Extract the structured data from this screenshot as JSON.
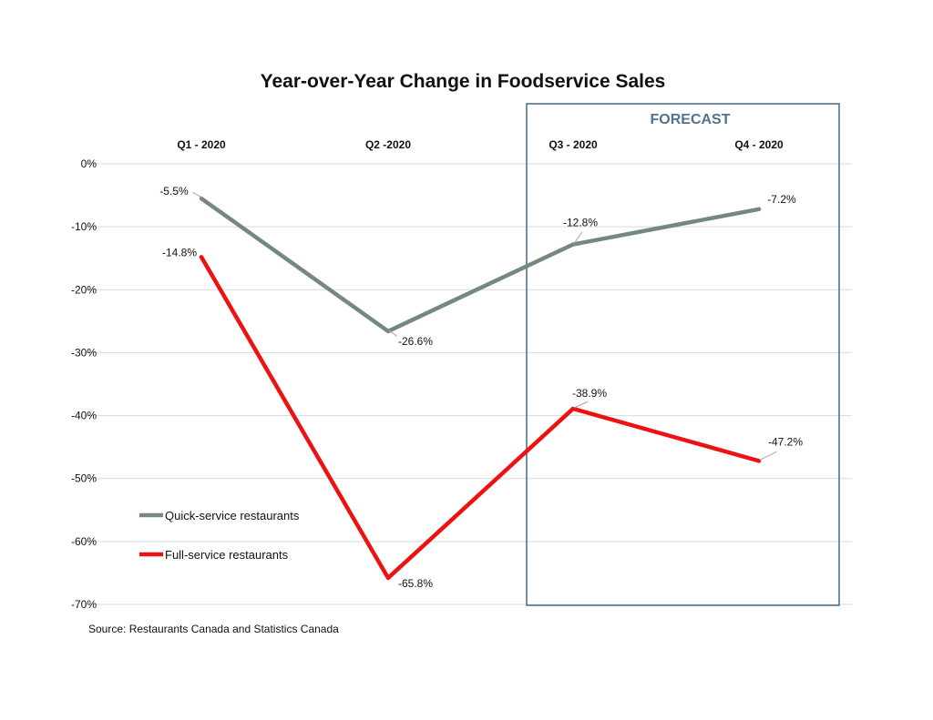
{
  "chart_data": {
    "type": "line",
    "title": "Year-over-Year Change in Foodservice Sales",
    "categories": [
      "Q1 - 2020",
      "Q2 -2020",
      "Q3 - 2020",
      "Q4 - 2020"
    ],
    "ylim": [
      -70,
      0
    ],
    "yticks": [
      0,
      -10,
      -20,
      -30,
      -40,
      -50,
      -60,
      -70
    ],
    "ytick_labels": [
      "0%",
      "-10%",
      "-20%",
      "-30%",
      "-40%",
      "-50%",
      "-60%",
      "-70%"
    ],
    "grid": true,
    "legend_position": "bottom-left",
    "series": [
      {
        "name": "Quick-service restaurants",
        "values": [
          -5.5,
          -26.6,
          -12.8,
          -7.2
        ],
        "labels": [
          "-5.5%",
          "-26.6%",
          "-12.8%",
          "-7.2%"
        ],
        "color": "#74897d"
      },
      {
        "name": "Full-service restaurants",
        "values": [
          -14.8,
          -65.8,
          -38.9,
          -47.2
        ],
        "labels": [
          "-14.8%",
          "-65.8%",
          "-38.9%",
          "-47.2%"
        ],
        "color": "#ee1111"
      }
    ],
    "forecast": {
      "label": "FORECAST",
      "start_category": "Q3 - 2020",
      "end_category": "Q4 - 2020",
      "color": "#4f7390"
    },
    "source": "Source: Restaurants Canada and Statistics Canada"
  }
}
